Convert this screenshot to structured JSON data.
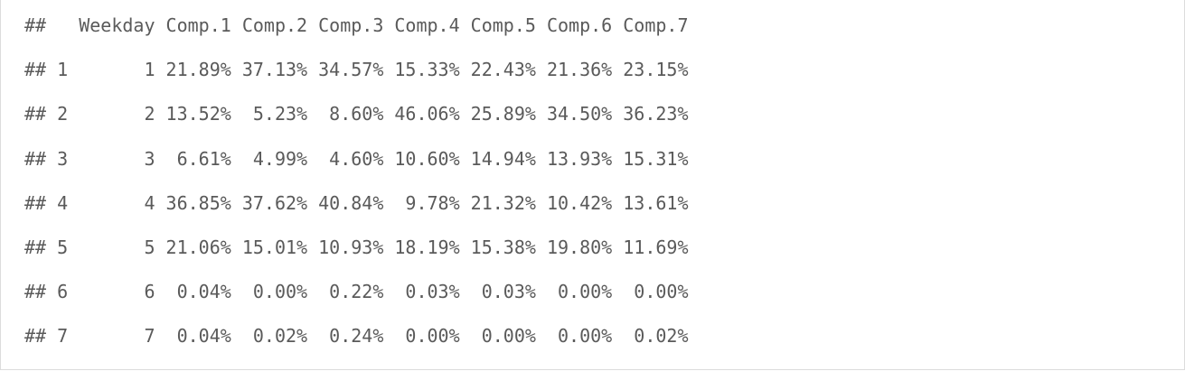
{
  "console_output": {
    "lines": [
      "##   Weekday Comp.1 Comp.2 Comp.3 Comp.4 Comp.5 Comp.6 Comp.7",
      "## 1       1 21.89% 37.13% 34.57% 15.33% 22.43% 21.36% 23.15%",
      "## 2       2 13.52%  5.23%  8.60% 46.06% 25.89% 34.50% 36.23%",
      "## 3       3  6.61%  4.99%  4.60% 10.60% 14.94% 13.93% 15.31%",
      "## 4       4 36.85% 37.62% 40.84%  9.78% 21.32% 10.42% 13.61%",
      "## 5       5 21.06% 15.01% 10.93% 18.19% 15.38% 19.80% 11.69%",
      "## 6       6  0.04%  0.00%  0.22%  0.03%  0.03%  0.00%  0.00%",
      "## 7       7  0.04%  0.02%  0.24%  0.00%  0.00%  0.00%  0.02%"
    ]
  }
}
